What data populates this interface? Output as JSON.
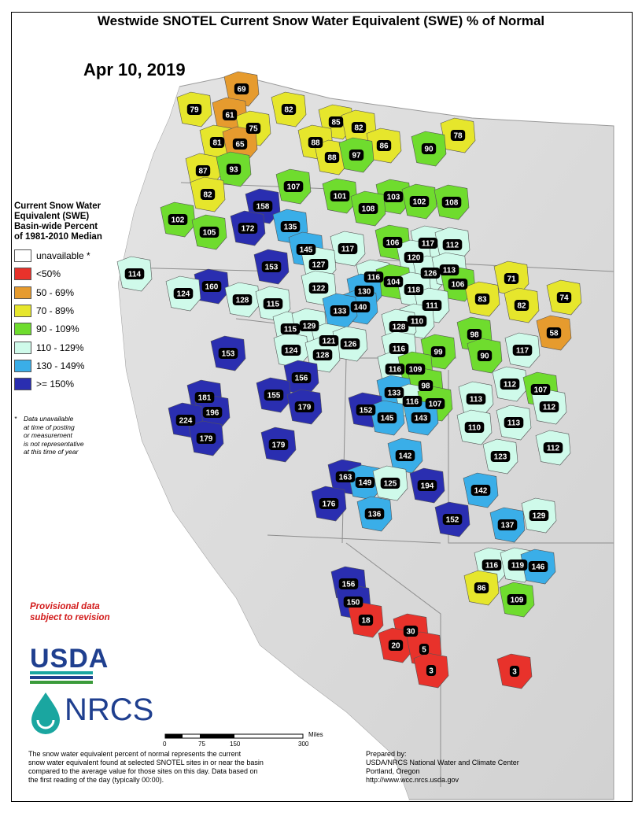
{
  "title": "Westwide SNOTEL Current Snow Water Equivalent (SWE) % of Normal",
  "date": "Apr 10, 2019",
  "legend": {
    "title_lines": [
      "Current Snow Water",
      "Equivalent (SWE)",
      "Basin-wide Percent",
      "of 1981-2010 Median"
    ],
    "classes": [
      {
        "label": "unavailable *",
        "color": "#ffffff"
      },
      {
        "label": "<50%",
        "color": "#e8322b"
      },
      {
        "label": "50 - 69%",
        "color": "#e69b2e"
      },
      {
        "label": "70 - 89%",
        "color": "#e6e62c"
      },
      {
        "label": "90 - 109%",
        "color": "#6fdc2e"
      },
      {
        "label": "110 - 129%",
        "color": "#cffaea"
      },
      {
        "label": "130 - 149%",
        "color": "#3aaee8"
      },
      {
        "label": ">= 150%",
        "color": "#2a2eb0"
      }
    ]
  },
  "note": {
    "asterisk": "*",
    "lines": [
      "Data unavailable",
      "at time of posting",
      "or measurement",
      "is not representative",
      "at this time of year"
    ]
  },
  "provisional": [
    "Provisional data",
    "subject to revision"
  ],
  "logos": {
    "usda": "USDA",
    "nrcs": "NRCS"
  },
  "scale": {
    "ticks": [
      "0",
      "75",
      "150",
      "300"
    ],
    "unit": "Miles"
  },
  "footer_left": [
    "The snow water equivalent percent of normal represents the current",
    "snow water equivalent found at selected SNOTEL sites in or near the basin",
    "compared to the average value for those sites on this day. Data based on",
    "the first reading of the day (typically 00:00)."
  ],
  "footer_right": [
    "Prepared by:",
    "USDA/NRCS National Water and Climate Center",
    "Portland, Oregon",
    "http://www.wcc.nrcs.usda.gov"
  ],
  "basins": [
    {
      "value": "69",
      "class": 2
    },
    {
      "value": "79",
      "class": 3
    },
    {
      "value": "61",
      "class": 2
    },
    {
      "value": "82",
      "class": 3
    },
    {
      "value": "75",
      "class": 3
    },
    {
      "value": "85",
      "class": 3
    },
    {
      "value": "82",
      "class": 3
    },
    {
      "value": "78",
      "class": 3
    },
    {
      "value": "81",
      "class": 3
    },
    {
      "value": "65",
      "class": 2
    },
    {
      "value": "88",
      "class": 3
    },
    {
      "value": "86",
      "class": 3
    },
    {
      "value": "90",
      "class": 4
    },
    {
      "value": "88",
      "class": 3
    },
    {
      "value": "97",
      "class": 4
    },
    {
      "value": "87",
      "class": 3
    },
    {
      "value": "93",
      "class": 4
    },
    {
      "value": "107",
      "class": 4
    },
    {
      "value": "101",
      "class": 4
    },
    {
      "value": "103",
      "class": 4
    },
    {
      "value": "102",
      "class": 4
    },
    {
      "value": "108",
      "class": 4
    },
    {
      "value": "82",
      "class": 3
    },
    {
      "value": "158",
      "class": 7
    },
    {
      "value": "108",
      "class": 4
    },
    {
      "value": "102",
      "class": 4
    },
    {
      "value": "172",
      "class": 7
    },
    {
      "value": "135",
      "class": 6
    },
    {
      "value": "105",
      "class": 4
    },
    {
      "value": "145",
      "class": 6
    },
    {
      "value": "117",
      "class": 5
    },
    {
      "value": "106",
      "class": 4
    },
    {
      "value": "117",
      "class": 5
    },
    {
      "value": "112",
      "class": 5
    },
    {
      "value": "127",
      "class": 5
    },
    {
      "value": "120",
      "class": 5
    },
    {
      "value": "153",
      "class": 7
    },
    {
      "value": "114",
      "class": 5
    },
    {
      "value": "126",
      "class": 5
    },
    {
      "value": "113",
      "class": 5
    },
    {
      "value": "71",
      "class": 3
    },
    {
      "value": "116",
      "class": 5
    },
    {
      "value": "160",
      "class": 7
    },
    {
      "value": "104",
      "class": 4
    },
    {
      "value": "106",
      "class": 4
    },
    {
      "value": "122",
      "class": 5
    },
    {
      "value": "130",
      "class": 6
    },
    {
      "value": "118",
      "class": 5
    },
    {
      "value": "124",
      "class": 5
    },
    {
      "value": "74",
      "class": 3
    },
    {
      "value": "83",
      "class": 3
    },
    {
      "value": "82",
      "class": 3
    },
    {
      "value": "128",
      "class": 5
    },
    {
      "value": "115",
      "class": 5
    },
    {
      "value": "140",
      "class": 6
    },
    {
      "value": "111",
      "class": 5
    },
    {
      "value": "133",
      "class": 6
    },
    {
      "value": "110",
      "class": 5
    },
    {
      "value": "128",
      "class": 5
    },
    {
      "value": "98",
      "class": 4
    },
    {
      "value": "58",
      "class": 2
    },
    {
      "value": "115",
      "class": 5
    },
    {
      "value": "129",
      "class": 5
    },
    {
      "value": "121",
      "class": 5
    },
    {
      "value": "126",
      "class": 5
    },
    {
      "value": "116",
      "class": 5
    },
    {
      "value": "99",
      "class": 4
    },
    {
      "value": "117",
      "class": 5
    },
    {
      "value": "153",
      "class": 7
    },
    {
      "value": "124",
      "class": 5
    },
    {
      "value": "90",
      "class": 4
    },
    {
      "value": "128",
      "class": 5
    },
    {
      "value": "116",
      "class": 5
    },
    {
      "value": "109",
      "class": 4
    },
    {
      "value": "112",
      "class": 5
    },
    {
      "value": "156",
      "class": 7
    },
    {
      "value": "98",
      "class": 4
    },
    {
      "value": "107",
      "class": 4
    },
    {
      "value": "133",
      "class": 6
    },
    {
      "value": "113",
      "class": 5
    },
    {
      "value": "181",
      "class": 7
    },
    {
      "value": "155",
      "class": 7
    },
    {
      "value": "116",
      "class": 5
    },
    {
      "value": "112",
      "class": 5
    },
    {
      "value": "179",
      "class": 7
    },
    {
      "value": "152",
      "class": 7
    },
    {
      "value": "107",
      "class": 4
    },
    {
      "value": "196",
      "class": 7
    },
    {
      "value": "145",
      "class": 6
    },
    {
      "value": "143",
      "class": 6
    },
    {
      "value": "224",
      "class": 7
    },
    {
      "value": "113",
      "class": 5
    },
    {
      "value": "110",
      "class": 5
    },
    {
      "value": "179",
      "class": 7
    },
    {
      "value": "112",
      "class": 5
    },
    {
      "value": "179",
      "class": 7
    },
    {
      "value": "142",
      "class": 6
    },
    {
      "value": "123",
      "class": 5
    },
    {
      "value": "163",
      "class": 7
    },
    {
      "value": "149",
      "class": 6
    },
    {
      "value": "125",
      "class": 5
    },
    {
      "value": "194",
      "class": 7
    },
    {
      "value": "142",
      "class": 6
    },
    {
      "value": "176",
      "class": 7
    },
    {
      "value": "136",
      "class": 6
    },
    {
      "value": "152",
      "class": 7
    },
    {
      "value": "137",
      "class": 6
    },
    {
      "value": "129",
      "class": 5
    },
    {
      "value": "116",
      "class": 5
    },
    {
      "value": "119",
      "class": 5
    },
    {
      "value": "146",
      "class": 6
    },
    {
      "value": "156",
      "class": 7
    },
    {
      "value": "86",
      "class": 3
    },
    {
      "value": "150",
      "class": 7
    },
    {
      "value": "109",
      "class": 4
    },
    {
      "value": "18",
      "class": 1
    },
    {
      "value": "30",
      "class": 1
    },
    {
      "value": "20",
      "class": 1
    },
    {
      "value": "5",
      "class": 1
    },
    {
      "value": "3",
      "class": 1
    },
    {
      "value": "3",
      "class": 1
    }
  ]
}
